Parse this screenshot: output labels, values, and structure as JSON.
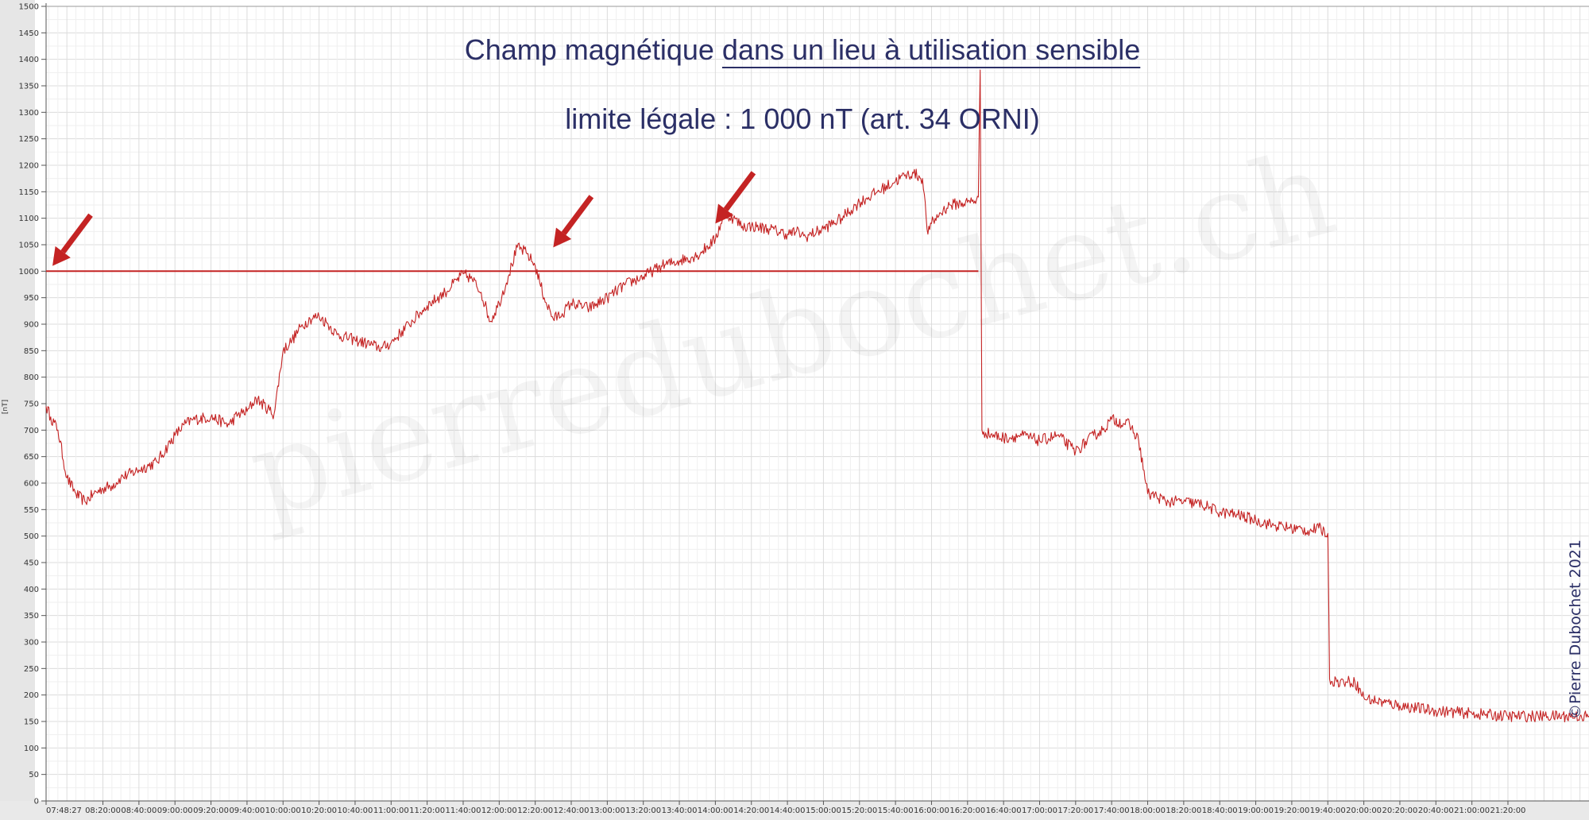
{
  "chart_data": {
    "type": "line",
    "title": "Champ magnétique dans un lieu à utilisation sensible",
    "title_parts": {
      "plain": "Champ magnétique ",
      "underlined": "dans un lieu à utilisation sensible"
    },
    "subtitle": "limite légale :  1 000 nT (art. 34 ORNI)",
    "ylabel": "[nT]",
    "xlabel": "",
    "ylim": [
      0,
      1500
    ],
    "y_ticks": [
      0,
      50,
      100,
      150,
      200,
      250,
      300,
      350,
      400,
      450,
      500,
      550,
      600,
      650,
      700,
      750,
      800,
      850,
      900,
      950,
      1000,
      1050,
      1100,
      1150,
      1200,
      1250,
      1300,
      1350,
      1400,
      1450,
      1500
    ],
    "x_range": [
      "07:48:27",
      "22:05:00"
    ],
    "x_tick_labels": [
      "07:48:27",
      "08:20:00",
      "08:40:00",
      "09:00:00",
      "09:20:00",
      "09:40:00",
      "10:00:00",
      "10:20:00",
      "10:40:00",
      "11:00:00",
      "11:20:00",
      "11:40:00",
      "12:00:00",
      "12:20:00",
      "12:40:00",
      "13:00:00",
      "13:20:00",
      "13:40:00",
      "14:00:00",
      "14:20:00",
      "14:40:00",
      "15:00:00",
      "15:20:00",
      "15:40:00",
      "16:00:00",
      "16:20:00",
      "16:40:00",
      "17:00:00",
      "17:20:00",
      "17:40:00",
      "18:00:00",
      "18:20:00",
      "18:40:00",
      "19:00:00",
      "19:20:00",
      "19:40:00",
      "20:00:00",
      "20:20:00",
      "20:40:00",
      "21:00:00",
      "21:20:00"
    ],
    "grid": true,
    "series": [
      {
        "color": "#c42323",
        "x": [
          "07:48:27",
          "07:51",
          "07:55",
          "08:00",
          "08:05",
          "08:10",
          "08:15",
          "08:20",
          "08:25",
          "08:30",
          "08:40",
          "08:50",
          "09:00",
          "09:05",
          "09:10",
          "09:20",
          "09:30",
          "09:35",
          "09:40",
          "09:45",
          "09:55",
          "10:00",
          "10:05",
          "10:10",
          "10:15",
          "10:20",
          "10:25",
          "10:30",
          "10:40",
          "10:50",
          "10:55",
          "11:00",
          "11:10",
          "11:20",
          "11:30",
          "11:40",
          "11:45",
          "11:50",
          "11:55",
          "12:00",
          "12:05",
          "12:10",
          "12:15",
          "12:20",
          "12:25",
          "12:30",
          "12:35",
          "12:40",
          "12:50",
          "13:00",
          "13:10",
          "13:20",
          "13:30",
          "13:40",
          "13:50",
          "14:00",
          "14:05",
          "14:10",
          "14:15",
          "14:20",
          "14:30",
          "14:40",
          "14:45",
          "14:50",
          "15:00",
          "15:10",
          "15:20",
          "15:30",
          "15:40",
          "15:45",
          "15:50",
          "15:55",
          "15:58",
          "16:00",
          "16:05",
          "16:10",
          "16:20",
          "16:25",
          "16:26",
          "16:27",
          "16:28",
          "16:30",
          "16:40",
          "16:50",
          "17:00",
          "17:10",
          "17:20",
          "17:30",
          "17:35",
          "17:40",
          "17:50",
          "17:55",
          "18:00",
          "18:05",
          "18:10",
          "18:20",
          "18:30",
          "18:40",
          "18:50",
          "19:00",
          "19:10",
          "19:20",
          "19:30",
          "19:35",
          "19:40",
          "19:41",
          "19:45",
          "19:50",
          "19:55",
          "20:00",
          "20:05",
          "20:20",
          "20:40",
          "21:00",
          "21:20",
          "21:40",
          "22:00",
          "22:05"
        ],
        "y": [
          745,
          725,
          700,
          610,
          580,
          565,
          580,
          590,
          595,
          610,
          625,
          640,
          690,
          710,
          720,
          725,
          710,
          730,
          735,
          760,
          730,
          850,
          870,
          895,
          910,
          915,
          900,
          880,
          870,
          860,
          855,
          865,
          900,
          935,
          960,
          995,
          985,
          960,
          905,
          940,
          990,
          1045,
          1035,
          1010,
          950,
          910,
          920,
          940,
          930,
          950,
          975,
          990,
          1010,
          1020,
          1030,
          1060,
          1110,
          1100,
          1085,
          1085,
          1080,
          1070,
          1075,
          1065,
          1080,
          1100,
          1130,
          1150,
          1170,
          1180,
          1185,
          1175,
          1070,
          1090,
          1110,
          1125,
          1130,
          1135,
          1140,
          1380,
          700,
          695,
          685,
          690,
          680,
          690,
          660,
          690,
          700,
          720,
          710,
          680,
          580,
          575,
          565,
          565,
          560,
          545,
          540,
          530,
          520,
          515,
          510,
          515,
          505,
          230,
          225,
          225,
          225,
          195,
          190,
          180,
          170,
          165,
          160,
          160,
          160,
          160
        ]
      },
      {
        "name": "limite légale",
        "color": "#c42323",
        "x": [
          "07:48:27",
          "16:26"
        ],
        "y": [
          1000,
          1000
        ]
      }
    ],
    "annotations": [
      {
        "type": "arrow",
        "points_to": [
          "07:52",
          1010
        ]
      },
      {
        "type": "arrow",
        "points_to": [
          "12:30",
          1045
        ]
      },
      {
        "type": "arrow",
        "points_to": [
          "14:00",
          1090
        ]
      }
    ]
  },
  "watermark": "pierredubochet.ch",
  "credit": "©Pierre Dubochet 2021"
}
